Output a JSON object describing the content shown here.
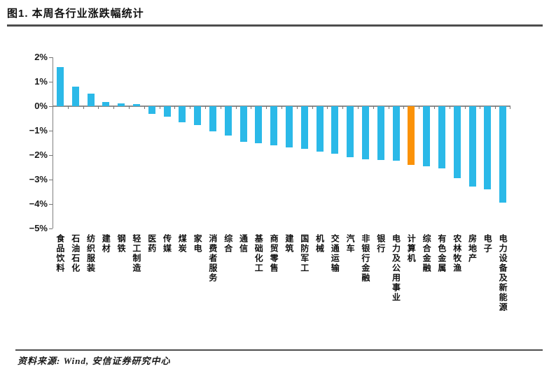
{
  "figure": {
    "title": "图1. 本周各行业涨跌幅统计",
    "source": "资料来源: Wind, 安信证券研究中心"
  },
  "colors": {
    "bar": "#2bb9e8",
    "bar_highlight": "#fb9208",
    "axis": "#808080",
    "rule": "#4d4d4d"
  },
  "chart_data": {
    "type": "bar",
    "title": "本周各行业涨跌幅统计",
    "unit": "%",
    "categories": [
      "食品饮料",
      "石油石化",
      "纺织服装",
      "建材",
      "钢铁",
      "轻工制造",
      "医药",
      "传媒",
      "煤炭",
      "家电",
      "消费者服务",
      "综合",
      "通信",
      "基础化工",
      "商贸零售",
      "建筑",
      "国防军工",
      "机械",
      "交通运输",
      "汽车",
      "非银行金融",
      "银行",
      "电力及公用事业",
      "计算机",
      "综合金融",
      "有色金属",
      "农林牧渔",
      "房地产",
      "电子",
      "电力设备及新能源"
    ],
    "values": [
      1.6,
      0.8,
      0.52,
      0.17,
      0.12,
      0.08,
      -0.3,
      -0.42,
      -0.65,
      -0.78,
      -1.02,
      -1.2,
      -1.45,
      -1.52,
      -1.6,
      -1.68,
      -1.75,
      -1.87,
      -1.95,
      -2.08,
      -2.18,
      -2.2,
      -2.22,
      -2.4,
      -2.45,
      -2.55,
      -2.95,
      -3.28,
      -3.4,
      -3.95
    ],
    "highlight_index": 23,
    "highlight_category": "计算机",
    "ylim": [
      -5,
      2
    ],
    "ytick_values": [
      2,
      1,
      0,
      -1,
      -2,
      -3,
      -4,
      -5
    ],
    "ytick_labels": [
      "2%",
      "1%",
      "0%",
      "−1%",
      "−2%",
      "−3%",
      "−4%",
      "−5%"
    ],
    "grid": false,
    "xlabel": "",
    "ylabel": ""
  }
}
